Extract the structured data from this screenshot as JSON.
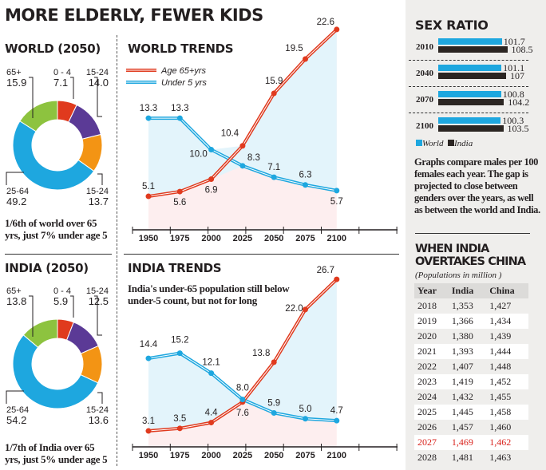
{
  "title": "MORE ELDERLY, FEWER KIDS",
  "colors": {
    "red": "#e03a1e",
    "purple": "#5b3a96",
    "orange": "#f39414",
    "blue": "#1ea7df",
    "green": "#8dc33f",
    "black": "#2b2522"
  },
  "world_donut": {
    "title": "WORLD (2050)",
    "caption": [
      "1/6th of  world over 65",
      "yrs, just 7% under age 5"
    ],
    "slices": [
      {
        "label": "0 - 4",
        "value": 7.1,
        "color": "#e03a1e"
      },
      {
        "label": "15-24",
        "value": 14.0,
        "color": "#5b3a96"
      },
      {
        "label": "15-24",
        "value": 13.7,
        "color": "#f39414"
      },
      {
        "label": "25-64",
        "value": 49.2,
        "color": "#1ea7df"
      },
      {
        "label": "65+",
        "value": 15.9,
        "color": "#8dc33f"
      }
    ]
  },
  "india_donut": {
    "title": "INDIA (2050)",
    "caption": [
      "1/7th of  India over 65",
      "yrs, just 5% under age 5"
    ],
    "slices": [
      {
        "label": "0 - 4",
        "value": 5.9,
        "color": "#e03a1e"
      },
      {
        "label": "15-24",
        "value": 12.5,
        "color": "#5b3a96"
      },
      {
        "label": "15-24",
        "value": 13.6,
        "color": "#f39414"
      },
      {
        "label": "25-64",
        "value": 54.2,
        "color": "#1ea7df"
      },
      {
        "label": "65+",
        "value": 13.8,
        "color": "#8dc33f"
      }
    ]
  },
  "chart_data": [
    {
      "type": "line",
      "title": "WORLD TRENDS",
      "categories": [
        "1950",
        "1975",
        "2000",
        "2025",
        "2050",
        "2075",
        "2100"
      ],
      "series": [
        {
          "name": "Age 65+yrs",
          "color": "#e03a1e",
          "values": [
            5.1,
            5.6,
            6.9,
            10.4,
            15.9,
            19.5,
            22.6
          ]
        },
        {
          "name": "Under 5 yrs",
          "color": "#1ea7df",
          "values": [
            13.3,
            13.3,
            10.0,
            8.3,
            7.1,
            6.3,
            5.7
          ]
        }
      ],
      "legend": "top-left",
      "grid": false
    },
    {
      "type": "line",
      "title": "INDIA TRENDS",
      "subtitle": [
        "India's under-65 population still below",
        "under-5 count, but not for long"
      ],
      "categories": [
        "1950",
        "1975",
        "2000",
        "2025",
        "2050",
        "2075",
        "2100"
      ],
      "series": [
        {
          "color": "#e03a1e",
          "values": [
            3.1,
            3.5,
            4.4,
            7.6,
            13.8,
            22.0,
            26.7
          ]
        },
        {
          "color": "#1ea7df",
          "values": [
            14.4,
            15.2,
            12.1,
            8.0,
            5.9,
            5.0,
            4.7
          ]
        }
      ],
      "grid": false
    },
    {
      "type": "bar",
      "title": "SEX RATIO",
      "categories": [
        "2010",
        "2040",
        "2070",
        "2100"
      ],
      "series": [
        {
          "name": "World",
          "color": "#1ea7df",
          "values": [
            101.7,
            101.1,
            100.8,
            100.3
          ]
        },
        {
          "name": "India",
          "color": "#2b2522",
          "values": [
            108.5,
            107.0,
            104.2,
            103.5
          ]
        }
      ],
      "legend": "bottom"
    },
    {
      "type": "table",
      "title": "WHEN INDIA OVERTAKES CHINA",
      "subtitle": "(Populations in million )",
      "columns": [
        "Year",
        "India",
        "China"
      ],
      "rows": [
        [
          "2018",
          "1,353",
          "1,427"
        ],
        [
          "2019",
          "1,366",
          "1,434"
        ],
        [
          "2020",
          "1,380",
          "1,439"
        ],
        [
          "2021",
          "1,393",
          "1,444"
        ],
        [
          "2022",
          "1,407",
          "1,448"
        ],
        [
          "2023",
          "1,419",
          "1,452"
        ],
        [
          "2024",
          "1,432",
          "1,455"
        ],
        [
          "2025",
          "1,445",
          "1,458"
        ],
        [
          "2026",
          "1,457",
          "1,460"
        ],
        [
          "2027",
          "1,469",
          "1,462"
        ],
        [
          "2028",
          "1,481",
          "1,463"
        ]
      ],
      "highlight_year": "2027"
    }
  ],
  "sex_ratio_note": "Graphs compare males per 100 females each year. The gap is projected to close between genders over the years, as well as between the world and India."
}
